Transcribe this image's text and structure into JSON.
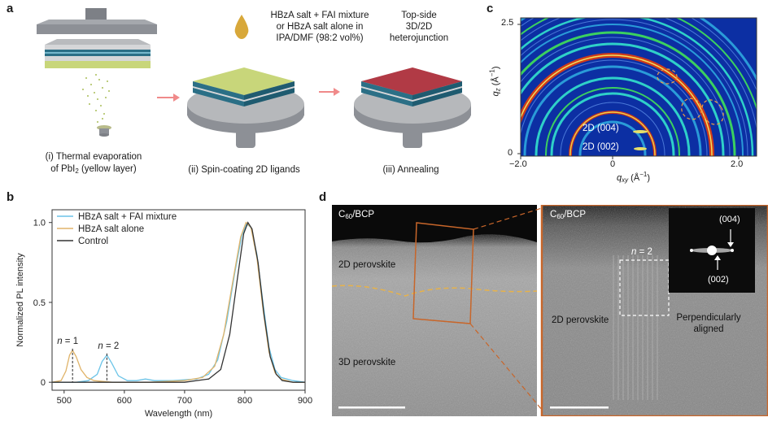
{
  "panels": {
    "a": {
      "letter": "a",
      "step1": {
        "caption_line1": "(i) Thermal evaporation",
        "caption_line2_pre": "of PbI",
        "caption_line2_sub": "2",
        "caption_line2_post": " (yellow layer)"
      },
      "step2": {
        "caption": "(ii) Spin-coating 2D ligands"
      },
      "step3": {
        "caption": "(iii) Annealing"
      },
      "ligand_label": {
        "line1": "HBzA salt + FAI mixture",
        "line2": "or HBzA salt alone in",
        "line3": "IPA/DMF (98:2 vol%)"
      },
      "result_label": {
        "line1": "Top-side",
        "line2": "3D/2D",
        "line3": "heterojunction"
      },
      "colors": {
        "yellow_layer": "#c8d67a",
        "red_layer": "#b13a45",
        "blue_layer": "#2b6f86",
        "arrow": "#f08a8a",
        "droplet": "#d8a83a"
      }
    },
    "b": {
      "letter": "b",
      "chart_data": {
        "type": "line",
        "xlabel": "Wavelength (nm)",
        "ylabel": "Normalized PL intensity",
        "xlim": [
          480,
          900
        ],
        "ylim": [
          -0.05,
          1.08
        ],
        "x_ticks": [
          "500",
          "600",
          "700",
          "800",
          "900"
        ],
        "x_tick_values": [
          500,
          600,
          700,
          800,
          900
        ],
        "y_ticks": [
          "0",
          "0.5",
          "1.0"
        ],
        "y_tick_values": [
          0,
          0.5,
          1.0
        ],
        "legend": [
          "HBzA salt + FAI mixture",
          "HBzA salt alone",
          "Control"
        ],
        "legend_position": "top-left",
        "annotations": [
          {
            "label_pre": "n",
            "label_post": " = 1",
            "x": 514
          },
          {
            "label_pre": "n",
            "label_post": " = 2",
            "x": 571
          }
        ],
        "series": [
          {
            "name": "HBzA salt + FAI mixture",
            "color": "#6cc4e8",
            "points": [
              [
                480,
                0.0
              ],
              [
                520,
                0.0
              ],
              [
                540,
                0.01
              ],
              [
                555,
                0.05
              ],
              [
                563,
                0.13
              ],
              [
                571,
                0.17
              ],
              [
                579,
                0.12
              ],
              [
                590,
                0.04
              ],
              [
                605,
                0.01
              ],
              [
                620,
                0.01
              ],
              [
                635,
                0.02
              ],
              [
                650,
                0.01
              ],
              [
                680,
                0.01
              ],
              [
                720,
                0.02
              ],
              [
                740,
                0.05
              ],
              [
                755,
                0.14
              ],
              [
                770,
                0.38
              ],
              [
                783,
                0.68
              ],
              [
                795,
                0.92
              ],
              [
                803,
                0.99
              ],
              [
                810,
                0.97
              ],
              [
                820,
                0.8
              ],
              [
                830,
                0.5
              ],
              [
                840,
                0.22
              ],
              [
                850,
                0.08
              ],
              [
                860,
                0.03
              ],
              [
                880,
                0.01
              ],
              [
                900,
                0.0
              ]
            ]
          },
          {
            "name": "HBzA salt alone",
            "color": "#e0b46a",
            "points": [
              [
                480,
                0.0
              ],
              [
                495,
                0.01
              ],
              [
                503,
                0.07
              ],
              [
                509,
                0.17
              ],
              [
                514,
                0.2
              ],
              [
                520,
                0.16
              ],
              [
                528,
                0.08
              ],
              [
                538,
                0.03
              ],
              [
                550,
                0.01
              ],
              [
                580,
                0.0
              ],
              [
                640,
                0.0
              ],
              [
                700,
                0.01
              ],
              [
                730,
                0.03
              ],
              [
                750,
                0.1
              ],
              [
                765,
                0.3
              ],
              [
                780,
                0.63
              ],
              [
                793,
                0.91
              ],
              [
                802,
                1.0
              ],
              [
                810,
                0.97
              ],
              [
                820,
                0.78
              ],
              [
                830,
                0.46
              ],
              [
                840,
                0.19
              ],
              [
                850,
                0.06
              ],
              [
                860,
                0.02
              ],
              [
                880,
                0.0
              ],
              [
                900,
                0.0
              ]
            ]
          },
          {
            "name": "Control",
            "color": "#333333",
            "points": [
              [
                480,
                0.0
              ],
              [
                700,
                0.0
              ],
              [
                740,
                0.02
              ],
              [
                760,
                0.08
              ],
              [
                775,
                0.3
              ],
              [
                788,
                0.66
              ],
              [
                798,
                0.93
              ],
              [
                805,
                1.0
              ],
              [
                812,
                0.96
              ],
              [
                822,
                0.75
              ],
              [
                832,
                0.42
              ],
              [
                842,
                0.16
              ],
              [
                852,
                0.05
              ],
              [
                862,
                0.01
              ],
              [
                880,
                0.0
              ],
              [
                900,
                0.0
              ]
            ]
          }
        ]
      }
    },
    "c": {
      "letter": "c",
      "axes": {
        "x_ticks": [
          "−2.0",
          "0",
          "2.0"
        ],
        "y_ticks": [
          "2.5",
          "0"
        ],
        "xlabel_q": "q",
        "xlabel_sub": "xy",
        "xlabel_unit": " (Å",
        "xlabel_sup": "−1",
        "xlabel_close": ")",
        "ylabel_q": "q",
        "ylabel_sub": "z",
        "ylabel_unit": " (Å",
        "ylabel_sup": "−1",
        "ylabel_close": ")"
      },
      "labels": {
        "peak_004": "2D (004)",
        "peak_002": "2D (002)"
      }
    },
    "d": {
      "letter": "d",
      "left": {
        "top_label_pre": "C",
        "top_label_sub": "60",
        "top_label_post": "/BCP",
        "layer_2d": "2D perovskite",
        "layer_3d": "3D perovskite"
      },
      "right": {
        "top_label_pre": "C",
        "top_label_sub": "60",
        "top_label_post": "/BCP",
        "n_label_pre": "n",
        "n_label_post": " = 2",
        "layer_2d": "2D perovskite",
        "aligned_line1": "Perpendicularly",
        "aligned_line2": "aligned",
        "fft_004": "(004)",
        "fft_002": "(002)"
      },
      "colors": {
        "frame": "#c8662a",
        "dash": "#e7b24a"
      }
    }
  }
}
